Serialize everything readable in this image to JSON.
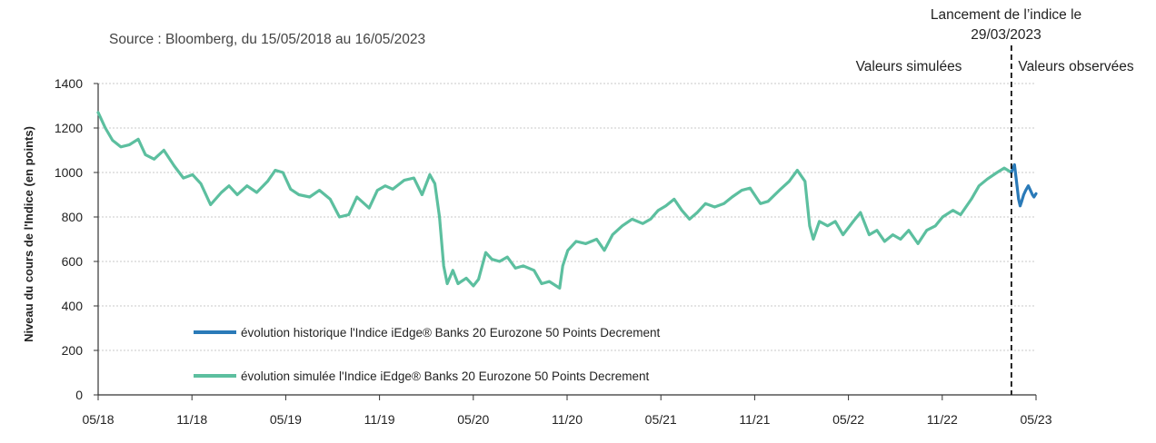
{
  "source": "Source : Bloomberg, du 15/05/2018 au 16/05/2023",
  "launch_annotation": [
    "Lancement de l’indice le",
    "29/03/2023"
  ],
  "region_simulated": "Valeurs simulées",
  "region_observed": "Valeurs observées",
  "chart_data": {
    "type": "line",
    "ylabel": "Niveau du cours de l'Indice (en points)",
    "ylim": [
      0,
      1400
    ],
    "yticks": [
      "0",
      "200",
      "400",
      "600",
      "800",
      "1000",
      "1200",
      "1400"
    ],
    "xticks": [
      "05/18",
      "11/18",
      "05/19",
      "11/19",
      "05/20",
      "11/20",
      "05/21",
      "11/21",
      "05/22",
      "11/22",
      "05/23"
    ],
    "xlim": [
      "2018-05-15",
      "2023-05-16"
    ],
    "grid": "horizontal",
    "launch_date": "2023-03-29",
    "series": [
      {
        "name": "évolution simulée l'Indice iEdge® Banks 20 Eurozone 50 Points Decrement",
        "color": "#5cbf9f",
        "points": [
          [
            "2018-05-15",
            1270
          ],
          [
            "2018-05-29",
            1200
          ],
          [
            "2018-06-12",
            1145
          ],
          [
            "2018-06-28",
            1115
          ],
          [
            "2018-07-15",
            1125
          ],
          [
            "2018-08-01",
            1150
          ],
          [
            "2018-08-15",
            1080
          ],
          [
            "2018-09-01",
            1060
          ],
          [
            "2018-09-20",
            1100
          ],
          [
            "2018-10-10",
            1030
          ],
          [
            "2018-10-28",
            975
          ],
          [
            "2018-11-15",
            990
          ],
          [
            "2018-12-01",
            950
          ],
          [
            "2018-12-20",
            855
          ],
          [
            "2019-01-10",
            910
          ],
          [
            "2019-01-25",
            940
          ],
          [
            "2019-02-10",
            900
          ],
          [
            "2019-03-01",
            940
          ],
          [
            "2019-03-20",
            910
          ],
          [
            "2019-04-10",
            960
          ],
          [
            "2019-04-25",
            1010
          ],
          [
            "2019-05-10",
            1000
          ],
          [
            "2019-05-25",
            925
          ],
          [
            "2019-06-10",
            900
          ],
          [
            "2019-07-01",
            890
          ],
          [
            "2019-07-20",
            920
          ],
          [
            "2019-08-10",
            880
          ],
          [
            "2019-08-28",
            800
          ],
          [
            "2019-09-15",
            810
          ],
          [
            "2019-10-01",
            890
          ],
          [
            "2019-10-25",
            840
          ],
          [
            "2019-11-10",
            920
          ],
          [
            "2019-11-25",
            940
          ],
          [
            "2019-12-10",
            925
          ],
          [
            "2020-01-01",
            965
          ],
          [
            "2020-01-20",
            975
          ],
          [
            "2020-02-05",
            900
          ],
          [
            "2020-02-20",
            990
          ],
          [
            "2020-03-01",
            950
          ],
          [
            "2020-03-10",
            800
          ],
          [
            "2020-03-18",
            580
          ],
          [
            "2020-03-25",
            500
          ],
          [
            "2020-04-05",
            560
          ],
          [
            "2020-04-15",
            500
          ],
          [
            "2020-05-01",
            525
          ],
          [
            "2020-05-15",
            490
          ],
          [
            "2020-05-25",
            520
          ],
          [
            "2020-06-08",
            640
          ],
          [
            "2020-06-20",
            610
          ],
          [
            "2020-07-05",
            600
          ],
          [
            "2020-07-20",
            620
          ],
          [
            "2020-08-05",
            570
          ],
          [
            "2020-08-20",
            580
          ],
          [
            "2020-09-10",
            560
          ],
          [
            "2020-09-25",
            500
          ],
          [
            "2020-10-10",
            510
          ],
          [
            "2020-10-30",
            480
          ],
          [
            "2020-11-05",
            580
          ],
          [
            "2020-11-15",
            650
          ],
          [
            "2020-12-01",
            690
          ],
          [
            "2020-12-20",
            680
          ],
          [
            "2021-01-10",
            700
          ],
          [
            "2021-01-25",
            650
          ],
          [
            "2021-02-10",
            720
          ],
          [
            "2021-03-01",
            760
          ],
          [
            "2021-03-20",
            790
          ],
          [
            "2021-04-10",
            770
          ],
          [
            "2021-04-25",
            790
          ],
          [
            "2021-05-10",
            830
          ],
          [
            "2021-05-25",
            850
          ],
          [
            "2021-06-10",
            880
          ],
          [
            "2021-06-25",
            830
          ],
          [
            "2021-07-10",
            790
          ],
          [
            "2021-07-25",
            820
          ],
          [
            "2021-08-10",
            860
          ],
          [
            "2021-08-28",
            845
          ],
          [
            "2021-09-15",
            860
          ],
          [
            "2021-10-01",
            890
          ],
          [
            "2021-10-20",
            920
          ],
          [
            "2021-11-05",
            930
          ],
          [
            "2021-11-25",
            860
          ],
          [
            "2021-12-10",
            870
          ],
          [
            "2022-01-01",
            920
          ],
          [
            "2022-01-20",
            960
          ],
          [
            "2022-02-05",
            1010
          ],
          [
            "2022-02-20",
            960
          ],
          [
            "2022-03-01",
            760
          ],
          [
            "2022-03-08",
            700
          ],
          [
            "2022-03-20",
            780
          ],
          [
            "2022-04-05",
            760
          ],
          [
            "2022-04-20",
            780
          ],
          [
            "2022-05-05",
            720
          ],
          [
            "2022-05-25",
            780
          ],
          [
            "2022-06-08",
            820
          ],
          [
            "2022-06-25",
            720
          ],
          [
            "2022-07-10",
            740
          ],
          [
            "2022-07-25",
            690
          ],
          [
            "2022-08-10",
            720
          ],
          [
            "2022-08-25",
            700
          ],
          [
            "2022-09-10",
            740
          ],
          [
            "2022-09-28",
            680
          ],
          [
            "2022-10-15",
            740
          ],
          [
            "2022-11-01",
            760
          ],
          [
            "2022-11-15",
            800
          ],
          [
            "2022-12-05",
            830
          ],
          [
            "2022-12-20",
            810
          ],
          [
            "2023-01-10",
            880
          ],
          [
            "2023-01-25",
            940
          ],
          [
            "2023-02-10",
            970
          ],
          [
            "2023-03-01",
            1000
          ],
          [
            "2023-03-15",
            1020
          ],
          [
            "2023-03-29",
            1000
          ]
        ]
      },
      {
        "name": "évolution historique l'Indice iEdge® Banks 20 Eurozone 50 Points Decrement",
        "color": "#2a7ab8",
        "points": [
          [
            "2023-03-29",
            1000
          ],
          [
            "2023-04-01",
            1020
          ],
          [
            "2023-04-04",
            1035
          ],
          [
            "2023-04-08",
            960
          ],
          [
            "2023-04-12",
            880
          ],
          [
            "2023-04-15",
            850
          ],
          [
            "2023-04-18",
            870
          ],
          [
            "2023-04-22",
            900
          ],
          [
            "2023-04-26",
            920
          ],
          [
            "2023-05-01",
            940
          ],
          [
            "2023-05-05",
            920
          ],
          [
            "2023-05-09",
            900
          ],
          [
            "2023-05-12",
            890
          ],
          [
            "2023-05-16",
            905
          ]
        ]
      }
    ],
    "legend_order": [
      1,
      0
    ],
    "legend_placement": "bottom-left inside plot"
  }
}
